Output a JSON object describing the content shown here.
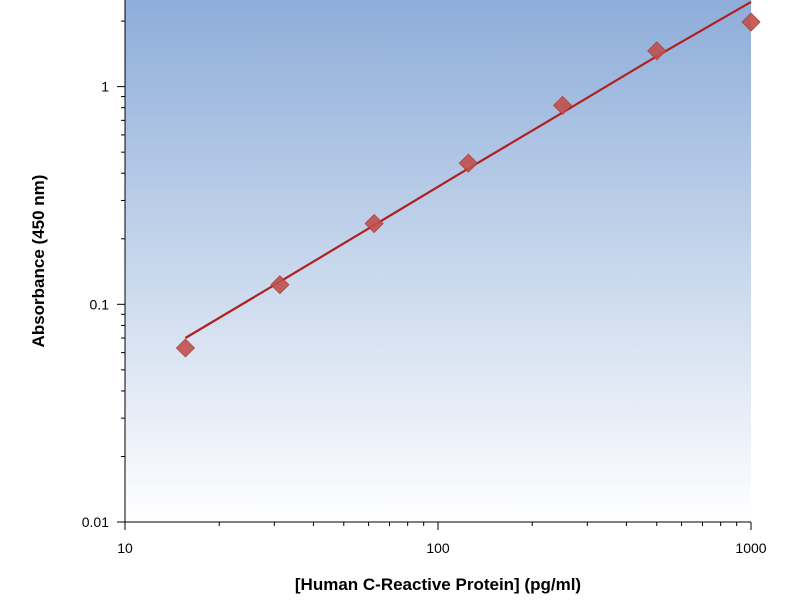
{
  "chart_data": {
    "type": "scatter",
    "title": "",
    "xlabel": "[Human C-Reactive Protein] (pg/ml)",
    "ylabel": "Absorbance (450 nm)",
    "x_scale": "log",
    "y_scale": "log",
    "xlim": [
      10,
      1000
    ],
    "ylim": [
      0.01,
      2.5
    ],
    "x_ticks": [
      {
        "value": 10,
        "label": "10"
      },
      {
        "value": 100,
        "label": "100"
      },
      {
        "value": 1000,
        "label": "1000"
      }
    ],
    "y_ticks": [
      {
        "value": 0.01,
        "label": "0.01"
      },
      {
        "value": 0.1,
        "label": "0.1"
      },
      {
        "value": 1,
        "label": "1"
      }
    ],
    "grid": false,
    "legend": "none",
    "series": [
      {
        "type": "scatter",
        "marker": "diamond",
        "color": "#c0504d",
        "x": [
          15.6,
          31.25,
          62.5,
          125,
          250,
          500,
          1000
        ],
        "y": [
          0.063,
          0.123,
          0.235,
          0.445,
          0.82,
          1.46,
          1.98
        ]
      },
      {
        "type": "line",
        "role": "fit",
        "color": "#b02020",
        "x": [
          15.6,
          31.25,
          62.5,
          125,
          250,
          500,
          1000
        ],
        "y": [
          0.07,
          0.127,
          0.231,
          0.42,
          0.76,
          1.38,
          2.45
        ]
      }
    ],
    "background_gradient": [
      "#8eadd9",
      "#ffffff"
    ]
  }
}
